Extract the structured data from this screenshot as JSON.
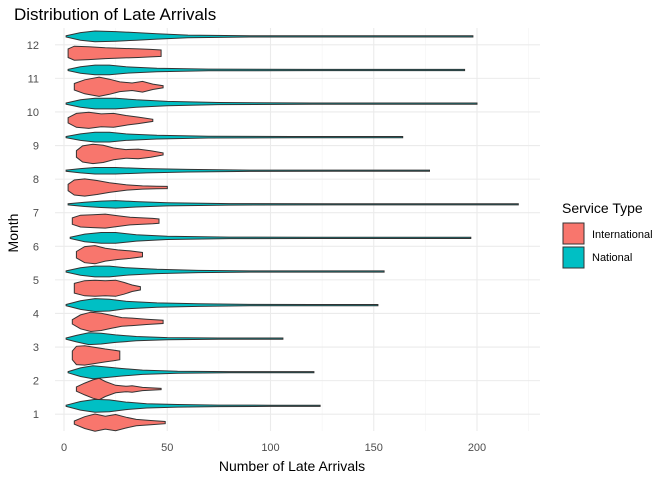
{
  "chart_data": {
    "type": "violin",
    "orientation": "horizontal",
    "title": "Distribution of Late Arrivals",
    "xlabel": "Number of Late Arrivals",
    "ylabel": "Month",
    "xlim": [
      -4,
      228
    ],
    "x_ticks": [
      0,
      50,
      100,
      150,
      200
    ],
    "categories": [
      "1",
      "2",
      "3",
      "4",
      "5",
      "6",
      "7",
      "8",
      "9",
      "10",
      "11",
      "12"
    ],
    "legend": {
      "title": "Service Type",
      "placement": "right",
      "entries": [
        {
          "label": "International",
          "color": "#F8766D"
        },
        {
          "label": "National",
          "color": "#00BFC4"
        }
      ]
    },
    "series": [
      {
        "name": "International",
        "color": "#F8766D",
        "violins": [
          {
            "month": 1,
            "min": 5,
            "max": 49,
            "density": [
              [
                5,
                0.15
              ],
              [
                10,
                0.55
              ],
              [
                15,
                0.8
              ],
              [
                20,
                0.6
              ],
              [
                25,
                0.75
              ],
              [
                30,
                0.5
              ],
              [
                35,
                0.3
              ],
              [
                42,
                0.2
              ],
              [
                49,
                0.1
              ]
            ]
          },
          {
            "month": 2,
            "min": 6,
            "max": 47,
            "density": [
              [
                6,
                0.2
              ],
              [
                10,
                0.55
              ],
              [
                14,
                0.85
              ],
              [
                17,
                1.0
              ],
              [
                20,
                0.7
              ],
              [
                25,
                0.35
              ],
              [
                30,
                0.25
              ],
              [
                33,
                0.3
              ],
              [
                38,
                0.15
              ],
              [
                47,
                0.05
              ]
            ]
          },
          {
            "month": 3,
            "min": 4,
            "max": 27,
            "density": [
              [
                4,
                0.4
              ],
              [
                6,
                0.85
              ],
              [
                10,
                0.9
              ],
              [
                15,
                0.75
              ],
              [
                20,
                0.6
              ],
              [
                24,
                0.5
              ],
              [
                27,
                0.4
              ]
            ]
          },
          {
            "month": 4,
            "min": 4,
            "max": 48,
            "density": [
              [
                4,
                0.2
              ],
              [
                8,
                0.65
              ],
              [
                13,
                0.9
              ],
              [
                18,
                0.8
              ],
              [
                23,
                0.6
              ],
              [
                28,
                0.4
              ],
              [
                33,
                0.35
              ],
              [
                40,
                0.25
              ],
              [
                48,
                0.15
              ]
            ]
          },
          {
            "month": 5,
            "min": 5,
            "max": 37,
            "density": [
              [
                5,
                0.45
              ],
              [
                10,
                0.7
              ],
              [
                15,
                0.75
              ],
              [
                20,
                0.7
              ],
              [
                25,
                0.75
              ],
              [
                29,
                0.55
              ],
              [
                33,
                0.3
              ],
              [
                37,
                0.15
              ]
            ]
          },
          {
            "month": 6,
            "min": 6,
            "max": 38,
            "density": [
              [
                6,
                0.3
              ],
              [
                10,
                0.75
              ],
              [
                15,
                0.85
              ],
              [
                20,
                0.6
              ],
              [
                26,
                0.45
              ],
              [
                32,
                0.35
              ],
              [
                38,
                0.2
              ]
            ]
          },
          {
            "month": 7,
            "min": 4,
            "max": 46,
            "density": [
              [
                4,
                0.3
              ],
              [
                8,
                0.55
              ],
              [
                14,
                0.6
              ],
              [
                20,
                0.65
              ],
              [
                26,
                0.5
              ],
              [
                32,
                0.35
              ],
              [
                38,
                0.3
              ],
              [
                43,
                0.25
              ],
              [
                46,
                0.2
              ]
            ]
          },
          {
            "month": 8,
            "min": 2,
            "max": 50,
            "density": [
              [
                2,
                0.3
              ],
              [
                5,
                0.7
              ],
              [
                10,
                0.8
              ],
              [
                16,
                0.65
              ],
              [
                22,
                0.45
              ],
              [
                30,
                0.25
              ],
              [
                38,
                0.15
              ],
              [
                45,
                0.12
              ],
              [
                50,
                0.1
              ]
            ]
          },
          {
            "month": 9,
            "min": 6,
            "max": 48,
            "density": [
              [
                6,
                0.3
              ],
              [
                9,
                0.75
              ],
              [
                14,
                0.9
              ],
              [
                19,
                0.8
              ],
              [
                24,
                0.55
              ],
              [
                30,
                0.4
              ],
              [
                36,
                0.45
              ],
              [
                42,
                0.3
              ],
              [
                48,
                0.1
              ]
            ]
          },
          {
            "month": 10,
            "min": 2,
            "max": 43,
            "density": [
              [
                2,
                0.25
              ],
              [
                6,
                0.65
              ],
              [
                12,
                0.75
              ],
              [
                18,
                0.6
              ],
              [
                24,
                0.65
              ],
              [
                30,
                0.45
              ],
              [
                36,
                0.3
              ],
              [
                43,
                0.1
              ]
            ]
          },
          {
            "month": 11,
            "min": 5,
            "max": 48,
            "density": [
              [
                5,
                0.3
              ],
              [
                10,
                0.65
              ],
              [
                17,
                0.9
              ],
              [
                22,
                0.7
              ],
              [
                27,
                0.45
              ],
              [
                33,
                0.35
              ],
              [
                38,
                0.5
              ],
              [
                43,
                0.25
              ],
              [
                48,
                0.1
              ]
            ]
          },
          {
            "month": 12,
            "min": 2,
            "max": 47,
            "density": [
              [
                2,
                0.4
              ],
              [
                5,
                0.65
              ],
              [
                12,
                0.6
              ],
              [
                20,
                0.5
              ],
              [
                28,
                0.45
              ],
              [
                36,
                0.4
              ],
              [
                42,
                0.35
              ],
              [
                47,
                0.3
              ]
            ]
          }
        ]
      },
      {
        "name": "National",
        "color": "#00BFC4",
        "violins": [
          {
            "month": 1,
            "min": 1,
            "max": 124,
            "density": [
              [
                1,
                0.05
              ],
              [
                8,
                0.4
              ],
              [
                15,
                0.6
              ],
              [
                22,
                0.55
              ],
              [
                30,
                0.35
              ],
              [
                40,
                0.2
              ],
              [
                55,
                0.12
              ],
              [
                75,
                0.07
              ],
              [
                100,
                0.04
              ],
              [
                124,
                0.02
              ]
            ]
          },
          {
            "month": 2,
            "min": 2,
            "max": 121,
            "density": [
              [
                2,
                0.05
              ],
              [
                8,
                0.4
              ],
              [
                14,
                0.6
              ],
              [
                20,
                0.5
              ],
              [
                28,
                0.35
              ],
              [
                38,
                0.2
              ],
              [
                55,
                0.1
              ],
              [
                80,
                0.05
              ],
              [
                121,
                0.02
              ]
            ]
          },
          {
            "month": 3,
            "min": 1,
            "max": 106,
            "density": [
              [
                1,
                0.05
              ],
              [
                6,
                0.3
              ],
              [
                12,
                0.55
              ],
              [
                18,
                0.5
              ],
              [
                25,
                0.35
              ],
              [
                35,
                0.2
              ],
              [
                50,
                0.1
              ],
              [
                75,
                0.05
              ],
              [
                106,
                0.02
              ]
            ]
          },
          {
            "month": 4,
            "min": 1,
            "max": 152,
            "density": [
              [
                1,
                0.05
              ],
              [
                8,
                0.4
              ],
              [
                15,
                0.6
              ],
              [
                22,
                0.55
              ],
              [
                30,
                0.35
              ],
              [
                45,
                0.2
              ],
              [
                65,
                0.12
              ],
              [
                90,
                0.06
              ],
              [
                120,
                0.03
              ],
              [
                152,
                0.02
              ]
            ]
          },
          {
            "month": 5,
            "min": 1,
            "max": 155,
            "density": [
              [
                1,
                0.05
              ],
              [
                8,
                0.35
              ],
              [
                15,
                0.5
              ],
              [
                22,
                0.5
              ],
              [
                30,
                0.35
              ],
              [
                45,
                0.2
              ],
              [
                65,
                0.1
              ],
              [
                90,
                0.05
              ],
              [
                155,
                0.02
              ]
            ]
          },
          {
            "month": 6,
            "min": 3,
            "max": 197,
            "density": [
              [
                3,
                0.05
              ],
              [
                10,
                0.35
              ],
              [
                18,
                0.5
              ],
              [
                25,
                0.5
              ],
              [
                35,
                0.3
              ],
              [
                50,
                0.15
              ],
              [
                80,
                0.07
              ],
              [
                120,
                0.04
              ],
              [
                197,
                0.02
              ]
            ]
          },
          {
            "month": 7,
            "min": 2,
            "max": 220,
            "density": [
              [
                2,
                0.03
              ],
              [
                10,
                0.2
              ],
              [
                18,
                0.3
              ],
              [
                25,
                0.35
              ],
              [
                35,
                0.25
              ],
              [
                50,
                0.15
              ],
              [
                80,
                0.07
              ],
              [
                130,
                0.04
              ],
              [
                220,
                0.02
              ]
            ]
          },
          {
            "month": 8,
            "min": 1,
            "max": 177,
            "density": [
              [
                1,
                0.03
              ],
              [
                8,
                0.2
              ],
              [
                15,
                0.3
              ],
              [
                25,
                0.3
              ],
              [
                40,
                0.2
              ],
              [
                60,
                0.12
              ],
              [
                90,
                0.06
              ],
              [
                130,
                0.03
              ],
              [
                177,
                0.02
              ]
            ]
          },
          {
            "month": 9,
            "min": 1,
            "max": 164,
            "density": [
              [
                1,
                0.05
              ],
              [
                8,
                0.3
              ],
              [
                15,
                0.45
              ],
              [
                22,
                0.45
              ],
              [
                30,
                0.3
              ],
              [
                45,
                0.17
              ],
              [
                70,
                0.08
              ],
              [
                110,
                0.04
              ],
              [
                164,
                0.02
              ]
            ]
          },
          {
            "month": 10,
            "min": 1,
            "max": 200,
            "density": [
              [
                1,
                0.05
              ],
              [
                8,
                0.35
              ],
              [
                15,
                0.5
              ],
              [
                25,
                0.5
              ],
              [
                35,
                0.35
              ],
              [
                50,
                0.2
              ],
              [
                75,
                0.1
              ],
              [
                120,
                0.05
              ],
              [
                200,
                0.02
              ]
            ]
          },
          {
            "month": 11,
            "min": 2,
            "max": 194,
            "density": [
              [
                2,
                0.05
              ],
              [
                8,
                0.3
              ],
              [
                15,
                0.45
              ],
              [
                22,
                0.45
              ],
              [
                30,
                0.3
              ],
              [
                45,
                0.17
              ],
              [
                70,
                0.08
              ],
              [
                120,
                0.04
              ],
              [
                194,
                0.02
              ]
            ]
          },
          {
            "month": 12,
            "min": 1,
            "max": 198,
            "density": [
              [
                1,
                0.05
              ],
              [
                8,
                0.35
              ],
              [
                15,
                0.5
              ],
              [
                25,
                0.45
              ],
              [
                35,
                0.35
              ],
              [
                45,
                0.25
              ],
              [
                60,
                0.12
              ],
              [
                90,
                0.06
              ],
              [
                140,
                0.03
              ],
              [
                198,
                0.02
              ]
            ]
          }
        ]
      }
    ]
  }
}
